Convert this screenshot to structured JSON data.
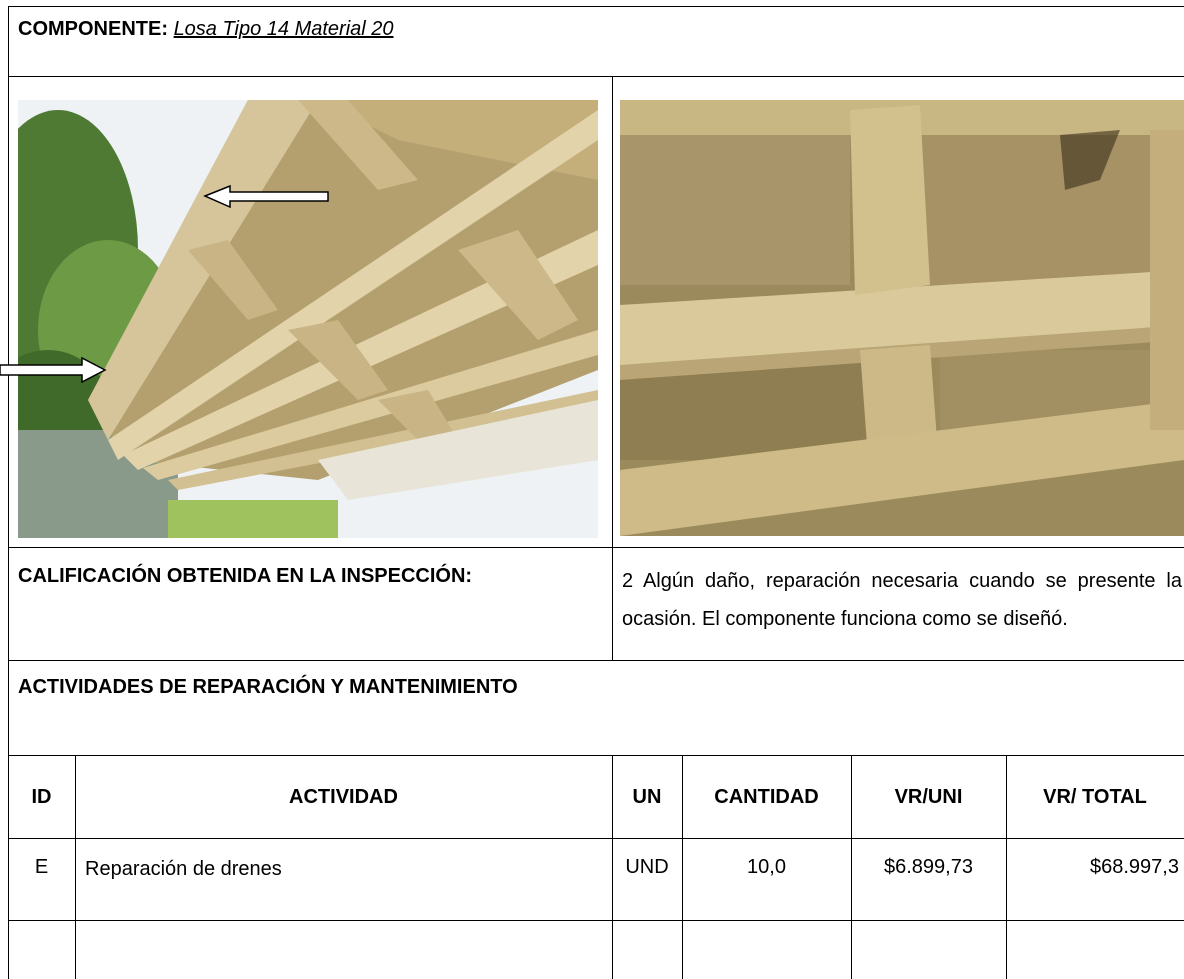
{
  "component": {
    "label": "COMPONENTE:",
    "value": "Losa Tipo 14 Material 20"
  },
  "rating": {
    "label": "CALIFICACIÓN OBTENIDA EN LA INSPECCIÓN:",
    "text": "2  Algún daño, reparación necesaria cuando se presente la ocasión. El componente funciona como se diseñó."
  },
  "activities": {
    "title": "ACTIVIDADES DE REPARACIÓN Y MANTENIMIENTO",
    "columns": [
      "ID",
      "ACTIVIDAD",
      "UN",
      "CANTIDAD",
      "VR/UNI",
      "VR/ TOTAL"
    ],
    "rows": [
      [
        "E",
        "Reparación de drenes",
        "UND",
        "10,0",
        "$6.899,73",
        "$68.997,3"
      ]
    ]
  }
}
